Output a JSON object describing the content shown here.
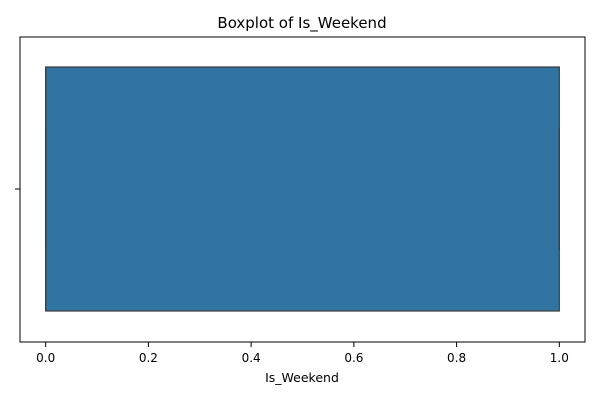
{
  "chart_data": {
    "type": "boxplot",
    "title": "Boxplot of Is_Weekend",
    "xlabel": "Is_Weekend",
    "ylabel": "",
    "orientation": "horizontal",
    "xlim": [
      -0.05,
      1.05
    ],
    "xticks": [
      0.0,
      0.2,
      0.4,
      0.6,
      0.8,
      1.0
    ],
    "xtick_labels": [
      "0.0",
      "0.2",
      "0.4",
      "0.6",
      "0.8",
      "1.0"
    ],
    "grid": false,
    "series": [
      {
        "name": "Is_Weekend",
        "min": 0.0,
        "q1": 0.0,
        "median": 0.0,
        "q3": 1.0,
        "max": 1.0,
        "color": "#3274a1",
        "edge_color": "#3d3d3d"
      }
    ]
  }
}
